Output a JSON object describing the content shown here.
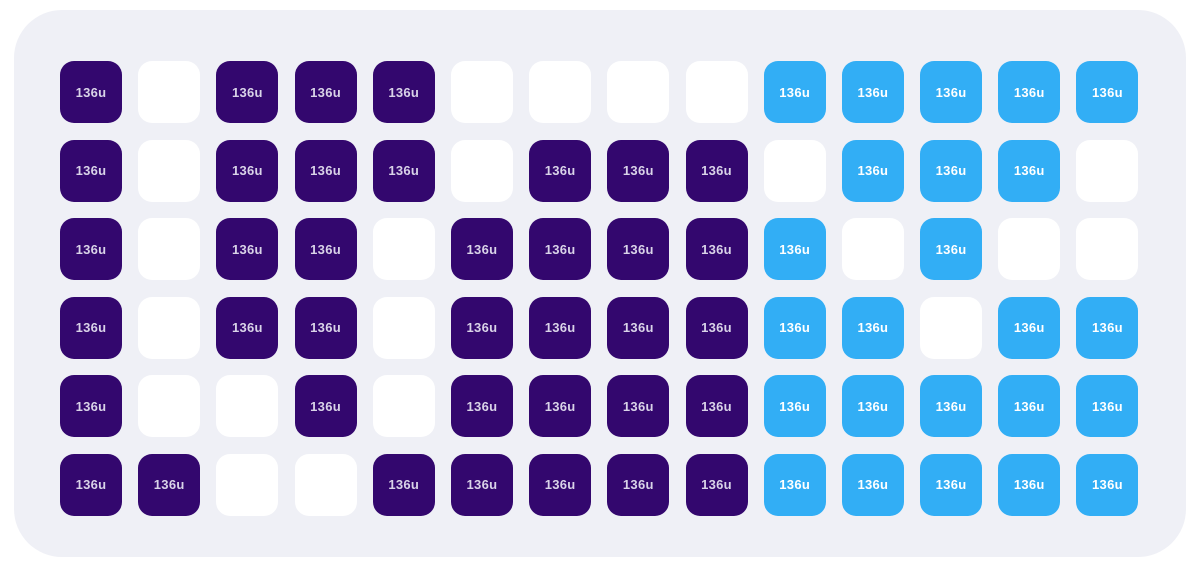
{
  "page": {
    "background": "#FFFFFF"
  },
  "board": {
    "background": "#EFF0F6",
    "label": "136u",
    "columns": 14,
    "row_count": 6,
    "colors": {
      "purple": "#33076E",
      "blue": "#32AEF5",
      "empty": "#FFFFFF",
      "label_on_purple": "#D9D3E8",
      "label_on_blue": "#FFFFFF"
    },
    "rows": [
      [
        "purple",
        "empty",
        "purple",
        "purple",
        "purple",
        "empty",
        "empty",
        "empty",
        "empty",
        "blue",
        "blue",
        "blue",
        "blue",
        "blue"
      ],
      [
        "purple",
        "empty",
        "purple",
        "purple",
        "purple",
        "empty",
        "purple",
        "purple",
        "purple",
        "empty",
        "blue",
        "blue",
        "blue",
        "empty"
      ],
      [
        "purple",
        "empty",
        "purple",
        "purple",
        "empty",
        "purple",
        "purple",
        "purple",
        "purple",
        "blue",
        "empty",
        "blue",
        "empty",
        "empty"
      ],
      [
        "purple",
        "empty",
        "purple",
        "purple",
        "empty",
        "purple",
        "purple",
        "purple",
        "purple",
        "blue",
        "blue",
        "empty",
        "blue",
        "blue"
      ],
      [
        "purple",
        "empty",
        "empty",
        "purple",
        "empty",
        "purple",
        "purple",
        "purple",
        "purple",
        "blue",
        "blue",
        "blue",
        "blue",
        "blue"
      ],
      [
        "purple",
        "purple",
        "empty",
        "empty",
        "purple",
        "purple",
        "purple",
        "purple",
        "purple",
        "blue",
        "blue",
        "blue",
        "blue",
        "blue"
      ]
    ]
  }
}
